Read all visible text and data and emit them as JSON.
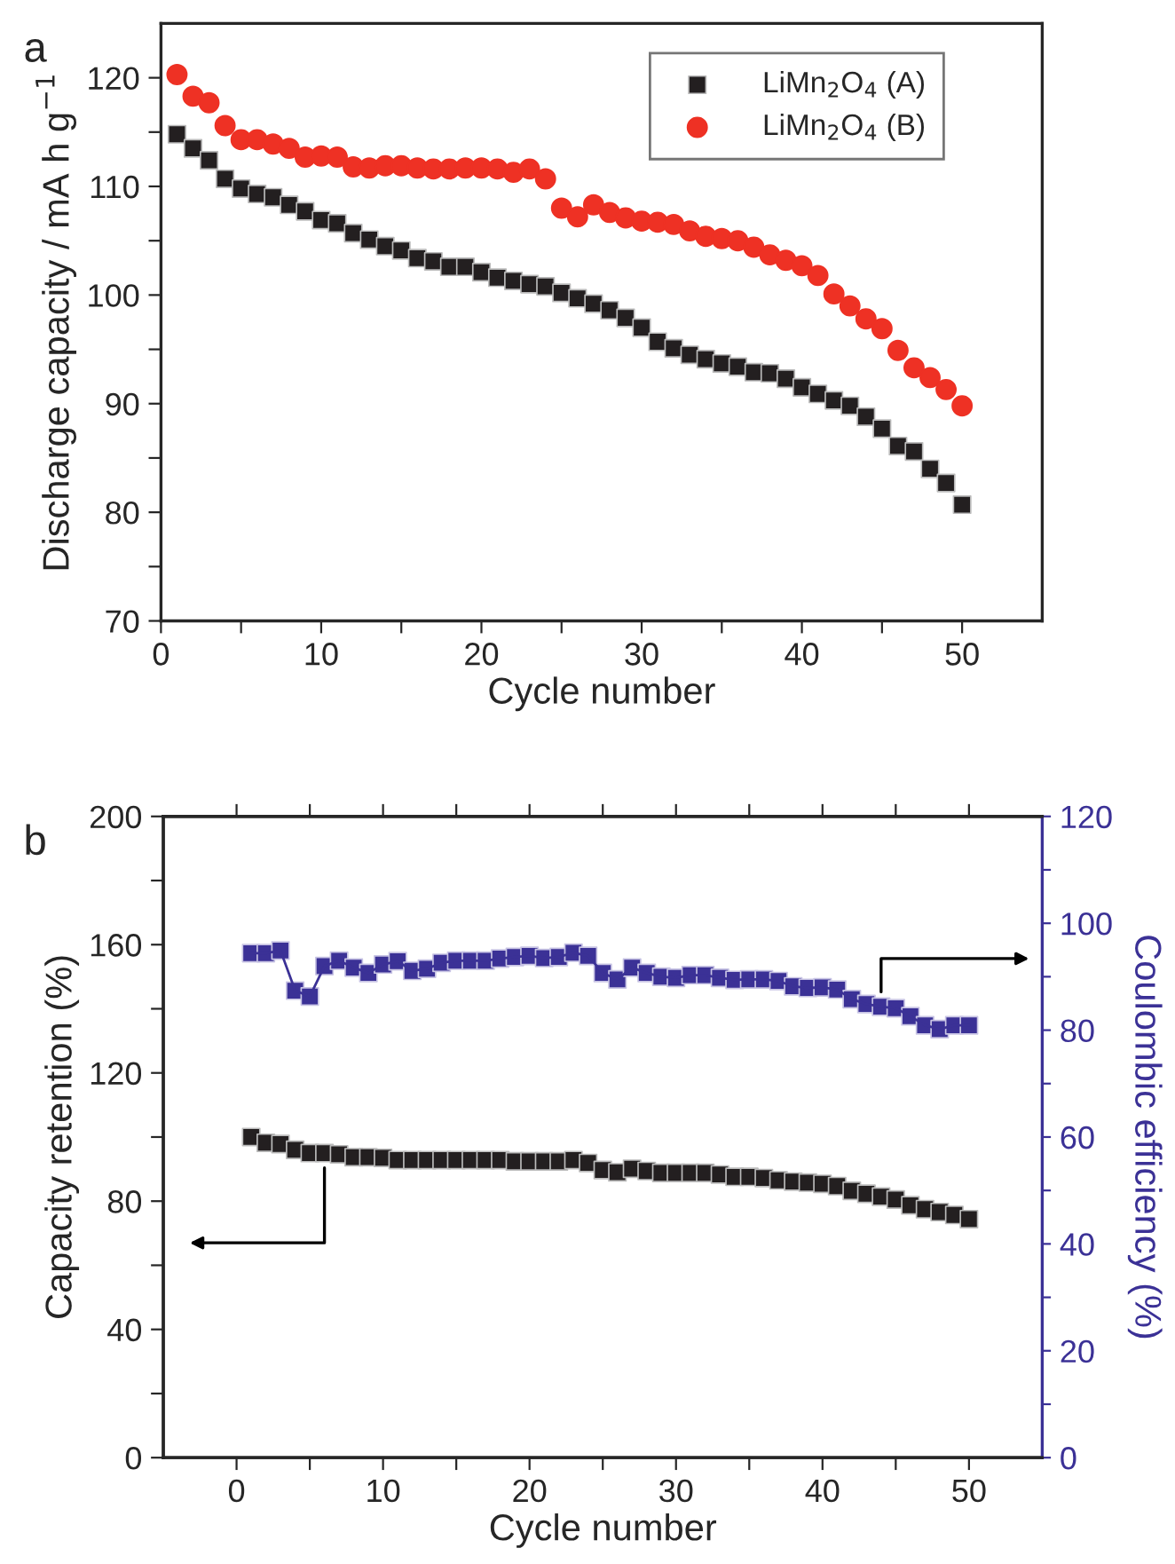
{
  "chart_data": [
    {
      "type": "scatter",
      "title": "a",
      "xlabel": "Cycle number",
      "ylabel": "Discharge capacity / mA h g$^{−1}$",
      "x": [
        1,
        2,
        3,
        4,
        5,
        6,
        7,
        8,
        9,
        10,
        11,
        12,
        13,
        14,
        15,
        16,
        17,
        18,
        19,
        20,
        21,
        22,
        23,
        24,
        25,
        26,
        27,
        28,
        29,
        30,
        31,
        32,
        33,
        34,
        35,
        36,
        37,
        38,
        39,
        40,
        41,
        42,
        43,
        44,
        45,
        46,
        47,
        48,
        49,
        50
      ],
      "xlim": [
        0,
        55
      ],
      "xticks": [
        0,
        {
          "value": 5,
          "label": null
        },
        10,
        {
          "value": 15,
          "label": null
        },
        20,
        {
          "value": 25,
          "label": null
        },
        30,
        {
          "value": 35,
          "label": null
        },
        40,
        {
          "value": 45,
          "label": null
        },
        50
      ],
      "ylim": [
        70,
        125
      ],
      "yticks": [
        70,
        {
          "value": 75,
          "label": null
        },
        80,
        {
          "value": 85,
          "label": null
        },
        90,
        {
          "value": 95,
          "label": null
        },
        100,
        {
          "value": 105,
          "label": null
        },
        110,
        {
          "value": 115,
          "label": null
        },
        120
      ],
      "legend": "top right",
      "grid": false,
      "series": [
        {
          "name": "LiMn$_{2}$O$_{4}$ (A)",
          "color": "#231f20",
          "marker": "square",
          "values": [
            114.8,
            113.5,
            112.4,
            110.7,
            109.8,
            109.3,
            109.0,
            108.3,
            107.7,
            106.9,
            106.6,
            105.7,
            105.1,
            104.5,
            104.1,
            103.4,
            103.1,
            102.6,
            102.6,
            102.1,
            101.6,
            101.3,
            101.0,
            100.8,
            100.2,
            99.7,
            99.2,
            98.6,
            97.9,
            97.0,
            95.7,
            95.1,
            94.5,
            94.1,
            93.7,
            93.4,
            92.9,
            92.8,
            92.3,
            91.5,
            90.9,
            90.3,
            89.8,
            88.8,
            87.7,
            86.1,
            85.6,
            84.0,
            82.7,
            80.7
          ]
        },
        {
          "name": "LiMn$_{2}$O$_{4}$ (B)",
          "color": "#ee3124",
          "marker": "circle",
          "values": [
            120.3,
            118.3,
            117.7,
            115.6,
            114.3,
            114.3,
            113.9,
            113.5,
            112.7,
            112.8,
            112.7,
            111.8,
            111.7,
            111.9,
            111.9,
            111.7,
            111.6,
            111.6,
            111.7,
            111.7,
            111.6,
            111.3,
            111.6,
            110.7,
            108.0,
            107.2,
            108.3,
            107.6,
            107.1,
            106.8,
            106.7,
            106.5,
            105.9,
            105.4,
            105.2,
            105.0,
            104.4,
            103.7,
            103.2,
            102.7,
            101.8,
            100.1,
            99.0,
            97.8,
            96.9,
            94.9,
            93.3,
            92.4,
            91.3,
            89.8
          ]
        }
      ]
    },
    {
      "type": "scatter",
      "title": "b",
      "xlabel": "Cycle number",
      "ylabel": "Capacity retention (%)",
      "y2label": "Coulombic efficiency (%)",
      "x": [
        1,
        2,
        3,
        4,
        5,
        6,
        7,
        8,
        9,
        10,
        11,
        12,
        13,
        14,
        15,
        16,
        17,
        18,
        19,
        20,
        21,
        22,
        23,
        24,
        25,
        26,
        27,
        28,
        29,
        30,
        31,
        32,
        33,
        34,
        35,
        36,
        37,
        38,
        39,
        40,
        41,
        42,
        43,
        44,
        45,
        46,
        47,
        48,
        49,
        50
      ],
      "xlim": [
        -5,
        55
      ],
      "xticks": [
        0,
        {
          "value": 5,
          "label": null
        },
        10,
        {
          "value": 15,
          "label": null
        },
        20,
        {
          "value": 25,
          "label": null
        },
        30,
        {
          "value": 35,
          "label": null
        },
        40,
        {
          "value": 45,
          "label": null
        },
        50
      ],
      "ylim": [
        0,
        200
      ],
      "yticks": [
        0,
        {
          "value": 20,
          "label": null
        },
        40,
        {
          "value": 60,
          "label": null
        },
        80,
        {
          "value": 100,
          "label": null
        },
        120,
        {
          "value": 140,
          "label": null
        },
        160,
        {
          "value": 180,
          "label": null
        },
        200
      ],
      "y2lim": [
        0,
        120
      ],
      "y2ticks": [
        0,
        {
          "value": 10,
          "label": null
        },
        20,
        {
          "value": 30,
          "label": null
        },
        40,
        {
          "value": 50,
          "label": null
        },
        60,
        {
          "value": 70,
          "label": null
        },
        80,
        {
          "value": 90,
          "label": null
        },
        100,
        {
          "value": 110,
          "label": null
        },
        120
      ],
      "grid": false,
      "series": [
        {
          "color": "#231f20",
          "marker": "square",
          "values": [
            100.0,
            98.2,
            97.8,
            96.0,
            95.0,
            95.0,
            94.6,
            93.7,
            93.7,
            93.5,
            92.8,
            92.8,
            92.8,
            92.8,
            92.8,
            92.8,
            92.8,
            92.8,
            92.4,
            92.4,
            92.4,
            92.4,
            92.8,
            91.9,
            89.7,
            89.0,
            90.1,
            89.4,
            88.8,
            88.8,
            88.8,
            88.8,
            88.3,
            87.6,
            87.6,
            87.2,
            86.5,
            86.1,
            85.8,
            85.4,
            84.7,
            83.2,
            82.3,
            81.4,
            80.5,
            78.7,
            77.5,
            76.6,
            75.7,
            74.4
          ]
        },
        {
          "type": "line",
          "axis": "y2",
          "color": "#3b3196",
          "marker": "square",
          "values": [
            94.4,
            94.4,
            94.9,
            87.4,
            86.3,
            92.0,
            93.0,
            91.7,
            90.7,
            92.3,
            92.9,
            91.1,
            91.5,
            92.6,
            93.0,
            93.0,
            93.0,
            93.4,
            93.7,
            93.9,
            93.5,
            93.7,
            94.5,
            93.9,
            90.7,
            89.5,
            91.7,
            90.7,
            90.0,
            89.8,
            90.3,
            90.3,
            89.8,
            89.4,
            89.5,
            89.5,
            89.2,
            88.2,
            87.9,
            88.0,
            87.6,
            85.8,
            84.9,
            84.4,
            84.1,
            82.6,
            80.9,
            80.2,
            80.9,
            80.9
          ]
        }
      ]
    }
  ]
}
